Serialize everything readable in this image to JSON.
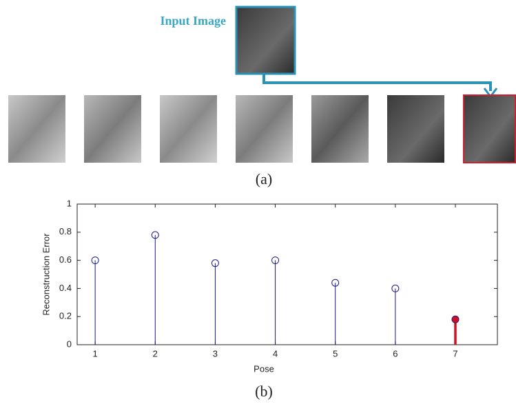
{
  "figure": {
    "input_label": "Input Image",
    "caption_a": "(a)",
    "caption_b": "(b)"
  },
  "chart_data": {
    "type": "stem",
    "x_label": "Pose",
    "y_label": "Reconstruction Error",
    "x": [
      1,
      2,
      3,
      4,
      5,
      6,
      7
    ],
    "values": [
      0.6,
      0.78,
      0.58,
      0.6,
      0.44,
      0.4,
      0.18
    ],
    "color": "#1a1a8c",
    "point_colors": [
      "#1a1a8c",
      "#1a1a8c",
      "#1a1a8c",
      "#1a1a8c",
      "#1a1a8c",
      "#1a1a8c",
      "#d01020"
    ],
    "xlim": [
      0.7,
      7.7
    ],
    "xticks": [
      1,
      2,
      3,
      4,
      5,
      6,
      7
    ],
    "ylim": [
      0,
      1
    ],
    "yticks": [
      0,
      0.2,
      0.4,
      0.6,
      0.8,
      1
    ]
  }
}
